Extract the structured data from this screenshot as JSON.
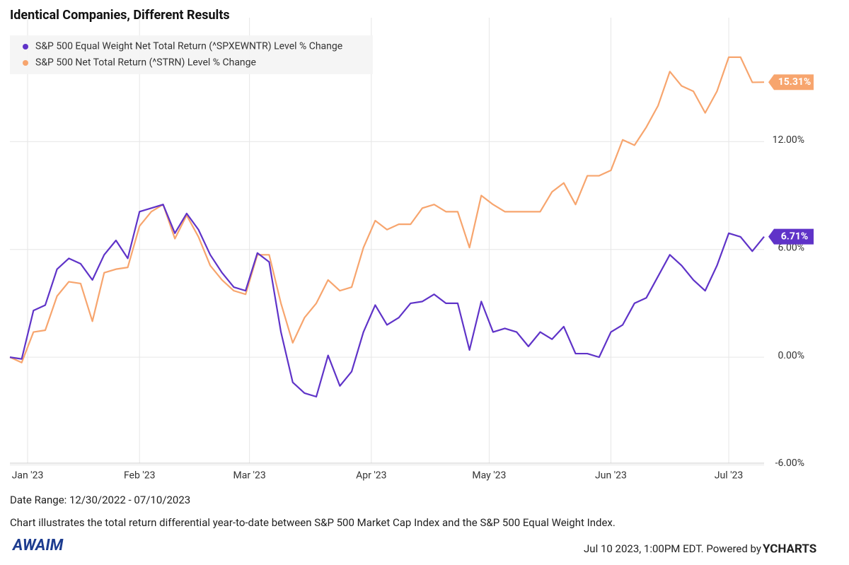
{
  "chart_data": {
    "type": "line",
    "title": "Identical Companies, Different Results",
    "xlim": [
      0,
      64
    ],
    "xticks": [
      {
        "value": 1.5,
        "label": "Jan '23"
      },
      {
        "value": 11,
        "label": "Feb '23"
      },
      {
        "value": 20.33,
        "label": "Mar '23"
      },
      {
        "value": 30.67,
        "label": "Apr '23"
      },
      {
        "value": 40.67,
        "label": "May '23"
      },
      {
        "value": 51,
        "label": "Jun '23"
      },
      {
        "value": 61,
        "label": "Jul '23"
      }
    ],
    "ylim": [
      -5.9,
      18.9
    ],
    "yticks": [
      {
        "value": -6,
        "label": "-6.00%"
      },
      {
        "value": 0,
        "label": "0.00%"
      },
      {
        "value": 6,
        "label": "6.00%"
      },
      {
        "value": 12,
        "label": "12.00%"
      }
    ],
    "grid": true,
    "legend": "top-left",
    "series": [
      {
        "name": "S&P 500 Equal Weight Net Total Return (^SPXEWNTR) Level % Change",
        "color": "#5f33c8",
        "values": [
          0,
          -0.1,
          2.6,
          2.9,
          4.9,
          5.5,
          5.2,
          4.3,
          5.7,
          6.5,
          5.5,
          8.1,
          8.3,
          8.5,
          6.9,
          8.0,
          7.1,
          5.7,
          4.7,
          3.9,
          3.7,
          5.8,
          5.3,
          1.4,
          -1.4,
          -2.0,
          -2.2,
          0.1,
          -1.6,
          -0.8,
          1.4,
          2.9,
          1.8,
          2.2,
          3.0,
          3.1,
          3.5,
          3.0,
          3.0,
          0.4,
          3.1,
          1.4,
          1.6,
          1.4,
          0.6,
          1.4,
          1.0,
          1.7,
          0.2,
          0.2,
          0,
          1.4,
          1.8,
          3.0,
          3.3,
          4.5,
          5.7,
          5.1,
          4.3,
          3.7,
          5.1,
          6.9,
          6.7,
          5.9,
          6.71
        ],
        "value_labels": [
          null,
          null,
          null,
          null,
          null,
          null,
          null,
          null,
          null,
          null,
          null,
          null,
          null,
          null,
          null,
          null,
          null,
          null,
          null,
          null,
          null,
          null,
          null,
          null,
          null,
          null,
          null,
          null,
          null,
          null,
          null,
          null,
          null,
          null,
          null,
          null,
          null,
          null,
          null,
          null,
          null,
          null,
          null,
          null,
          null,
          null,
          null,
          null,
          null,
          null,
          null,
          null,
          null,
          null,
          null,
          null,
          null,
          null,
          null,
          null,
          null,
          null,
          null,
          null,
          "6.71%"
        ]
      },
      {
        "name": "S&P 500 Net Total Return (^STRN) Level % Change",
        "color": "#f7a56e",
        "values": [
          0,
          -0.3,
          1.4,
          1.5,
          3.4,
          4.2,
          4.1,
          2.0,
          4.7,
          4.9,
          5.0,
          7.3,
          8.1,
          8.5,
          6.6,
          7.9,
          6.7,
          5.1,
          4.3,
          3.7,
          3.5,
          5.7,
          5.7,
          3.0,
          0.8,
          2.2,
          3.0,
          4.3,
          3.7,
          3.9,
          6.1,
          7.6,
          7.1,
          7.4,
          7.4,
          8.3,
          8.5,
          8.1,
          8.1,
          6.1,
          9.0,
          8.5,
          8.1,
          8.1,
          8.1,
          8.1,
          9.2,
          9.7,
          8.5,
          10.1,
          10.1,
          10.4,
          12.1,
          11.8,
          12.8,
          14.0,
          15.9,
          15.1,
          14.8,
          13.6,
          14.8,
          16.7,
          16.7,
          15.3,
          15.31
        ],
        "value_labels": [
          null,
          null,
          null,
          null,
          null,
          null,
          null,
          null,
          null,
          null,
          null,
          null,
          null,
          null,
          null,
          null,
          null,
          null,
          null,
          null,
          null,
          null,
          null,
          null,
          null,
          null,
          null,
          null,
          null,
          null,
          null,
          null,
          null,
          null,
          null,
          null,
          null,
          null,
          null,
          null,
          null,
          null,
          null,
          null,
          null,
          null,
          null,
          null,
          null,
          null,
          null,
          null,
          null,
          null,
          null,
          null,
          null,
          null,
          null,
          null,
          null,
          null,
          null,
          null,
          "15.31%"
        ]
      }
    ]
  },
  "footer": {
    "date_range": "Date Range: 12/30/2022 - 07/10/2023",
    "caption": "Chart illustrates the total return differential year-to-date between S&P 500 Market Cap Index and the S&P 500 Equal Weight Index.",
    "logo": "AWAIM",
    "timestamp": "Jul 10 2023, 1:00PM EDT. Powered by",
    "brand": "YCHARTS"
  }
}
